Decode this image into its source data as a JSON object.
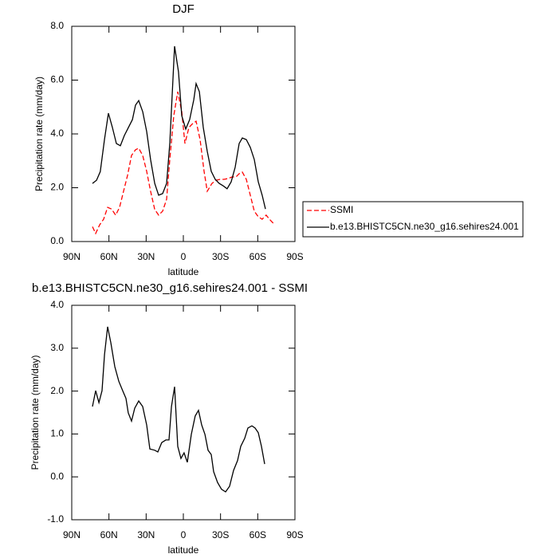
{
  "chart_data": [
    {
      "type": "line",
      "title": "DJF",
      "xlabel": "latitude",
      "ylabel": "Precipitation rate (mm/day)",
      "xlim": [
        90,
        -90
      ],
      "xticks": [
        {
          "value": 90,
          "label": "90N"
        },
        {
          "value": 60,
          "label": "60N"
        },
        {
          "value": 30,
          "label": "30N"
        },
        0,
        {
          "value": -30,
          "label": "30S"
        },
        {
          "value": -60,
          "label": "60S"
        },
        {
          "value": -90,
          "label": "90S"
        }
      ],
      "ylim": [
        0,
        8
      ],
      "yticks": [
        {
          "value": 0,
          "label": "0.0"
        },
        {
          "value": 2,
          "label": "2.0"
        },
        {
          "value": 4,
          "label": "4.0"
        },
        {
          "value": 6,
          "label": "6.0"
        },
        {
          "value": 8,
          "label": "8.0"
        }
      ],
      "legend": "right",
      "series": [
        {
          "name": "SSMI",
          "color": "#ff0000",
          "dash": true,
          "x": [
            73.3,
            70.7,
            67.5,
            64.3,
            61.1,
            57.9,
            54.6,
            51.4,
            48.2,
            45,
            41.8,
            38.6,
            36,
            32.8,
            29.6,
            26.4,
            23.1,
            19.9,
            16.7,
            13.5,
            10.9,
            7.7,
            4.5,
            1.3,
            -1.3,
            -4.5,
            -7.7,
            -10.3,
            -13.5,
            -16.7,
            -19.3,
            -23.1,
            -26.4,
            -29.6,
            -32.8,
            -36,
            -39.2,
            -42.4,
            -45,
            -47.6,
            -50.8,
            -54,
            -57.2,
            -60.4,
            -63.6,
            -66.8,
            -70,
            -72.6
          ],
          "values": [
            0.55,
            0.3,
            0.62,
            0.83,
            1.27,
            1.21,
            0.98,
            1.27,
            1.87,
            2.46,
            3.2,
            3.41,
            3.47,
            3.2,
            2.61,
            1.87,
            1.19,
            0.98,
            1.13,
            1.57,
            3.05,
            4.68,
            5.57,
            4.83,
            3.64,
            4.24,
            4.39,
            4.47,
            3.79,
            2.61,
            1.87,
            2.16,
            2.28,
            2.31,
            2.31,
            2.34,
            2.4,
            2.4,
            2.52,
            2.58,
            2.31,
            1.72,
            1.13,
            0.92,
            0.83,
            0.98,
            0.8,
            0.68
          ]
        },
        {
          "name": "b.e13.BHISTC5CN.ne30_g16.sehires24.001",
          "color": "#000000",
          "dash": false,
          "x": [
            73.3,
            70,
            67,
            63.6,
            60.4,
            57.2,
            54,
            50.8,
            47.6,
            44.3,
            41.1,
            38.6,
            36,
            32.8,
            29.6,
            26.4,
            23.1,
            19.9,
            16.7,
            13.5,
            10.9,
            7.1,
            3.9,
            1.3,
            -1.9,
            -5.1,
            -8.4,
            -10.3,
            -12.9,
            -16.1,
            -19.3,
            -22.5,
            -25.7,
            -28.9,
            -32.1,
            -35.3,
            -38.6,
            -41.8,
            -45,
            -47.6,
            -50.8,
            -54,
            -57.2,
            -60.4,
            -63.6,
            -66.2
          ],
          "values": [
            2.16,
            2.28,
            2.6,
            3.8,
            4.77,
            4.24,
            3.64,
            3.56,
            3.94,
            4.24,
            4.53,
            5.07,
            5.24,
            4.83,
            4.09,
            3.05,
            2.16,
            1.72,
            1.78,
            2.16,
            3.64,
            7.26,
            6.31,
            4.68,
            4.18,
            4.53,
            5.27,
            5.87,
            5.57,
            4.24,
            3.35,
            2.61,
            2.31,
            2.16,
            2.07,
            1.96,
            2.22,
            2.76,
            3.64,
            3.85,
            3.79,
            3.5,
            3.05,
            2.22,
            1.72,
            1.21
          ]
        }
      ]
    },
    {
      "type": "line",
      "title": "b.e13.BHISTC5CN.ne30_g16.sehires24.001 - SSMI",
      "xlabel": "latitude",
      "ylabel": "Precipitation rate (mm/day)",
      "xlim": [
        90,
        -90
      ],
      "xticks": [
        {
          "value": 90,
          "label": "90N"
        },
        {
          "value": 60,
          "label": "60N"
        },
        {
          "value": 30,
          "label": "30N"
        },
        0,
        {
          "value": -30,
          "label": "30S"
        },
        {
          "value": -60,
          "label": "60S"
        },
        {
          "value": -90,
          "label": "90S"
        }
      ],
      "ylim": [
        -1,
        4
      ],
      "yticks": [
        {
          "value": -1,
          "label": "-1.0"
        },
        {
          "value": 0,
          "label": "0.0"
        },
        {
          "value": 1,
          "label": "1.0"
        },
        {
          "value": 2,
          "label": "2.0"
        },
        {
          "value": 3,
          "label": "3.0"
        },
        {
          "value": 4,
          "label": "4.0"
        }
      ],
      "color": "#000000",
      "x": [
        73.3,
        70.7,
        68.1,
        65.6,
        63.6,
        61.1,
        58.5,
        55.3,
        52.1,
        48.9,
        46.3,
        44.4,
        41.8,
        39.2,
        36,
        32.8,
        29.6,
        27,
        23.1,
        20.6,
        17.4,
        14.1,
        11.6,
        9.6,
        7.1,
        4.5,
        1.9,
        -0.6,
        -3.2,
        -6.4,
        -9.6,
        -12.2,
        -14.8,
        -17.4,
        -19.9,
        -22.5,
        -24.4,
        -27.6,
        -30.8,
        -34.1,
        -37.3,
        -40.5,
        -43.7,
        -46.3,
        -49.5,
        -52.1,
        -55.3,
        -57.8,
        -60.4,
        -63,
        -65.6
      ],
      "values": [
        1.64,
        2.01,
        1.73,
        2.01,
        2.85,
        3.5,
        3.13,
        2.57,
        2.23,
        2.01,
        1.83,
        1.49,
        1.3,
        1.6,
        1.77,
        1.64,
        1.21,
        0.65,
        0.62,
        0.58,
        0.8,
        0.86,
        0.86,
        1.64,
        2.1,
        0.71,
        0.43,
        0.56,
        0.34,
        0.99,
        1.42,
        1.55,
        1.21,
        0.99,
        0.62,
        0.52,
        0.12,
        -0.13,
        -0.29,
        -0.35,
        -0.22,
        0.15,
        0.38,
        0.71,
        0.9,
        1.14,
        1.19,
        1.14,
        1.03,
        0.71,
        0.3
      ]
    }
  ]
}
